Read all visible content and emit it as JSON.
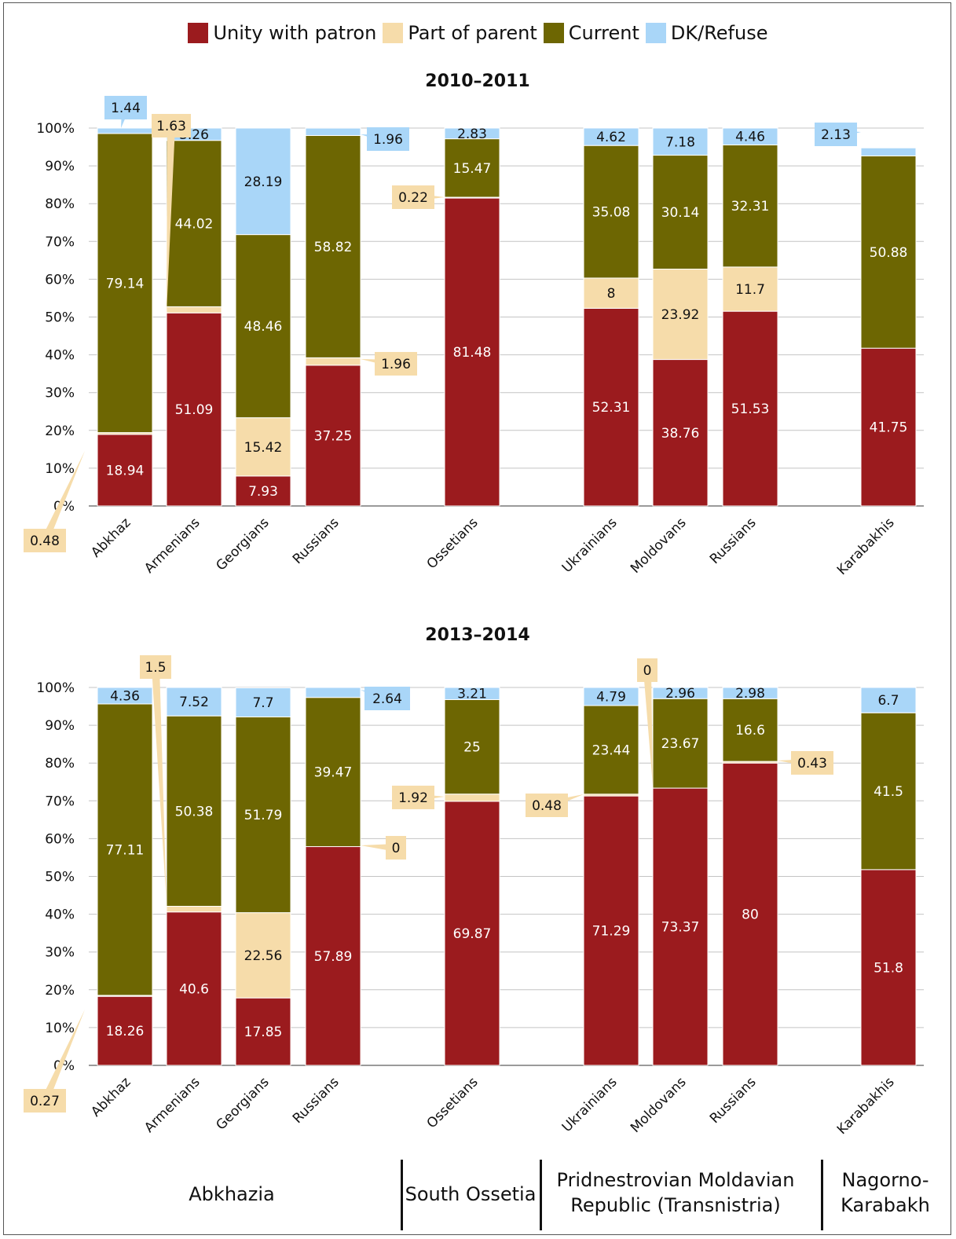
{
  "legend": [
    {
      "name": "Unity with patron",
      "color": "#9b1b1e"
    },
    {
      "name": "Part of parent",
      "color": "#f6dcaa"
    },
    {
      "name": "Current",
      "color": "#6d6602"
    },
    {
      "name": "DK/Refuse",
      "color": "#a9d6f8"
    }
  ],
  "colors": {
    "unity": "#9b1b1e",
    "parent": "#f6dcaa",
    "current": "#6d6602",
    "dk": "#a9d6f8",
    "callout": "#f6dcaa",
    "grid": "#c4c4c4"
  },
  "group_labels": [
    {
      "text": "Abkhazia"
    },
    {
      "text": "South Ossetia"
    },
    {
      "text": "Pridnestrovian Moldavian Republic (Transnistria)"
    },
    {
      "text": "Nagorno-Karabakh"
    }
  ],
  "chart_data": [
    {
      "type": "bar",
      "stacked": true,
      "title": "2010–2011",
      "ylim": [
        0,
        100
      ],
      "yticks": [
        "0%",
        "10%",
        "20%",
        "30%",
        "40%",
        "50%",
        "60%",
        "70%",
        "80%",
        "90%",
        "100%"
      ],
      "grid": true,
      "legend_position": "top",
      "categories": [
        "Abkhaz",
        "Armenians",
        "Georgians",
        "Russians",
        "Ossetians",
        "Ukrainians",
        "Moldovans",
        "Russians",
        "Karabakhis"
      ],
      "series": [
        {
          "name": "Unity with patron",
          "values": [
            18.94,
            51.09,
            7.93,
            37.25,
            81.48,
            52.31,
            38.76,
            51.53,
            41.75
          ]
        },
        {
          "name": "Part of parent",
          "values": [
            0.48,
            1.63,
            15.42,
            1.96,
            0.22,
            8,
            23.92,
            11.7,
            0
          ]
        },
        {
          "name": "Current",
          "values": [
            79.14,
            44.02,
            48.46,
            58.82,
            15.47,
            35.08,
            30.14,
            32.31,
            50.88
          ]
        },
        {
          "name": "DK/Refuse",
          "values": [
            1.44,
            3.26,
            28.19,
            1.96,
            2.83,
            4.62,
            7.18,
            4.46,
            2.13
          ]
        }
      ],
      "labels": [
        [
          "18.94",
          "51.09",
          "7.93",
          "37.25",
          "81.48",
          "52.31",
          "38.76",
          "51.53",
          "41.75"
        ],
        [
          "0.48",
          "1.63",
          "15.42",
          "1.96",
          "0.22",
          "8",
          "23.92",
          "11.7",
          ""
        ],
        [
          "79.14",
          "44.02",
          "48.46",
          "58.82",
          "15.47",
          "35.08",
          "30.14",
          "32.31",
          "50.88"
        ],
        [
          "1.44",
          "3.26",
          "28.19",
          "1.96",
          "2.83",
          "4.62",
          "7.18",
          "4.46",
          "2.13"
        ]
      ]
    },
    {
      "type": "bar",
      "stacked": true,
      "title": "2013–2014",
      "ylim": [
        0,
        100
      ],
      "yticks": [
        "0%",
        "10%",
        "20%",
        "30%",
        "40%",
        "50%",
        "60%",
        "70%",
        "80%",
        "90%",
        "100%"
      ],
      "grid": true,
      "legend_position": "top",
      "categories": [
        "Abkhaz",
        "Armenians",
        "Georgians",
        "Russians",
        "Ossetians",
        "Ukrainians",
        "Moldovans",
        "Russians",
        "Karabakhis"
      ],
      "series": [
        {
          "name": "Unity with patron",
          "values": [
            18.26,
            40.6,
            17.85,
            57.89,
            69.87,
            71.29,
            73.37,
            80,
            51.8
          ]
        },
        {
          "name": "Part of parent",
          "values": [
            0.27,
            1.5,
            22.56,
            0,
            1.92,
            0.48,
            0,
            0.43,
            0
          ]
        },
        {
          "name": "Current",
          "values": [
            77.11,
            50.38,
            51.79,
            39.47,
            25,
            23.44,
            23.67,
            16.6,
            41.5
          ]
        },
        {
          "name": "DK/Refuse",
          "values": [
            4.36,
            7.52,
            7.7,
            2.64,
            3.21,
            4.79,
            2.96,
            2.98,
            6.7
          ]
        }
      ],
      "labels": [
        [
          "18.26",
          "40.6",
          "17.85",
          "57.89",
          "69.87",
          "71.29",
          "73.37",
          "80",
          "51.8"
        ],
        [
          "0.27",
          "1.5",
          "22.56",
          "0",
          "1.92",
          "0.48",
          "0",
          "0.43",
          ""
        ],
        [
          "77.11",
          "50.38",
          "51.79",
          "39.47",
          "25",
          "23.44",
          "23.67",
          "16.6",
          "41.5"
        ],
        [
          "4.36",
          "7.52",
          "7.7",
          "2.64",
          "3.21",
          "4.79",
          "2.96",
          "2.98",
          "6.7"
        ]
      ]
    }
  ]
}
